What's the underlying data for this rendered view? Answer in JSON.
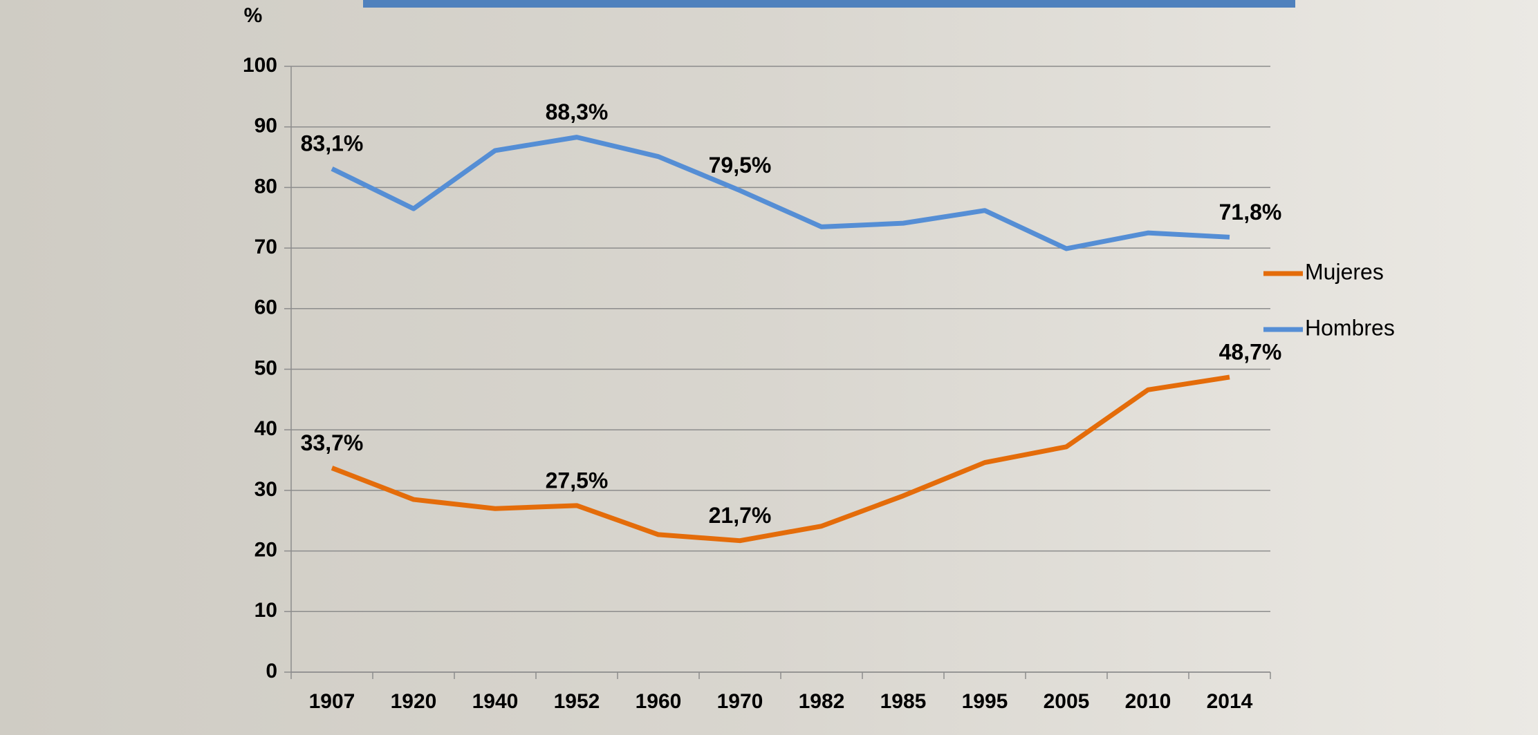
{
  "chart_data": {
    "type": "line",
    "ylabel": "%",
    "categories": [
      "1907",
      "1920",
      "1940",
      "1952",
      "1960",
      "1970",
      "1982",
      "1985",
      "1995",
      "2005",
      "2010",
      "2014"
    ],
    "series": [
      {
        "name": "Mujeres",
        "color": "#e46c0a",
        "values": [
          33.7,
          28.5,
          27.0,
          27.5,
          22.7,
          21.7,
          24.1,
          29.1,
          34.6,
          37.2,
          46.6,
          48.7
        ],
        "value_labels": [
          "33,7%",
          null,
          null,
          "27,5%",
          null,
          "21,7%",
          null,
          null,
          null,
          null,
          null,
          "48,7%"
        ]
      },
      {
        "name": "Hombres",
        "color": "#558ed5",
        "values": [
          83.1,
          76.5,
          86.1,
          88.3,
          85.1,
          79.5,
          73.5,
          74.1,
          76.2,
          69.9,
          72.5,
          71.8
        ],
        "value_labels": [
          "83,1%",
          null,
          null,
          "88,3%",
          null,
          "79,5%",
          null,
          null,
          null,
          null,
          null,
          "71,8%"
        ]
      }
    ],
    "ylim": [
      0,
      100
    ],
    "yticks": [
      0,
      10,
      20,
      30,
      40,
      50,
      60,
      70,
      80,
      90,
      100
    ],
    "grid": true,
    "legend": "right"
  }
}
